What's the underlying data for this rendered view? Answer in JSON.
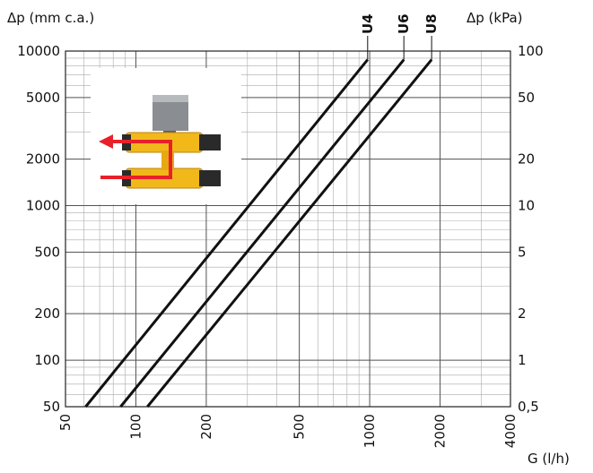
{
  "chart_data": {
    "type": "line",
    "x_scale": "log",
    "y_scale": "log",
    "xlabel": "G (l/h)",
    "ylabel_left": "Δp (mm c.a.)",
    "ylabel_right": "Δp (kPa)",
    "xlim": [
      50,
      4000
    ],
    "ylim": [
      50,
      10000
    ],
    "x_ticks": [
      "50",
      "100",
      "200",
      "500",
      "1000",
      "2000",
      "4000"
    ],
    "x_tick_values": [
      50,
      100,
      200,
      500,
      1000,
      2000,
      4000
    ],
    "y_ticks_left": [
      "50",
      "100",
      "200",
      "500",
      "1000",
      "2000",
      "5000",
      "10000"
    ],
    "y_tick_values": [
      50,
      100,
      200,
      500,
      1000,
      2000,
      5000,
      10000
    ],
    "y_ticks_right": [
      "0,5",
      "1",
      "2",
      "5",
      "10",
      "20",
      "50",
      "100"
    ],
    "grid": true,
    "series": [
      {
        "name": "U4",
        "x": [
          61,
          980
        ],
        "y": [
          50,
          8800
        ]
      },
      {
        "name": "U6",
        "x": [
          86,
          1400
        ],
        "y": [
          50,
          8800
        ]
      },
      {
        "name": "U8",
        "x": [
          112,
          1840
        ],
        "y": [
          50,
          8800
        ]
      }
    ],
    "colors": {
      "line": "#111111",
      "grid": "#aaaaaa",
      "arrow": "#e8202a",
      "valve": "#f2b81a"
    }
  }
}
